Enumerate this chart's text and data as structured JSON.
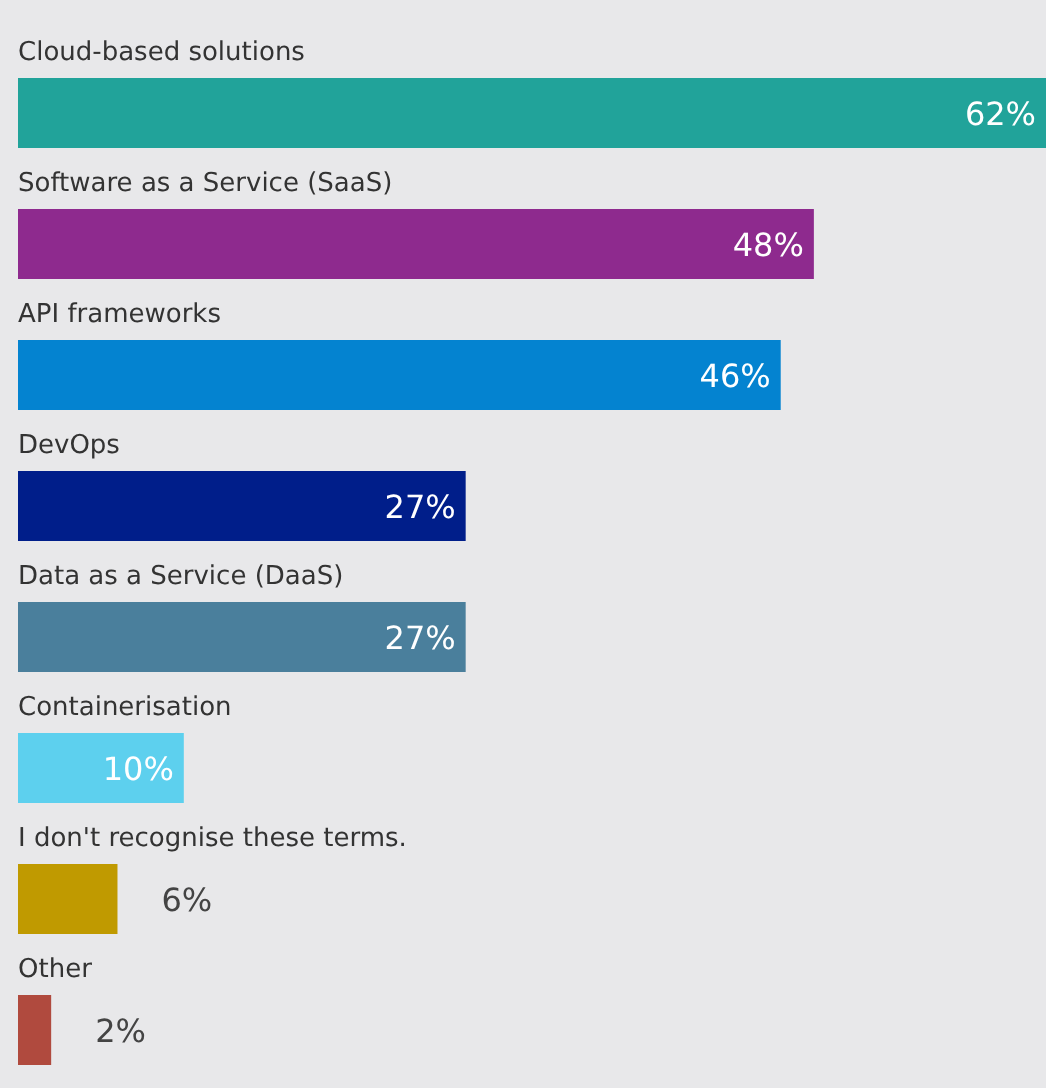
{
  "chart_data": {
    "type": "bar",
    "orientation": "horizontal",
    "categories": [
      "Cloud-based solutions",
      "Software as a Service (SaaS)",
      "API frameworks",
      "DevOps",
      "Data as a Service (DaaS)",
      "Containerisation",
      "I don't recognise these terms.",
      "Other"
    ],
    "values": [
      62,
      48,
      46,
      27,
      27,
      10,
      6,
      2
    ],
    "colors": [
      "#21a39a",
      "#8e2a8e",
      "#0483d0",
      "#001e8a",
      "#4a7f9c",
      "#5dd0ee",
      "#c09a00",
      "#b04a3e"
    ],
    "data_labels": true,
    "value_labels": [
      "62%",
      "48%",
      "46%",
      "27%",
      "27%",
      "10%",
      "6%",
      "2%"
    ]
  }
}
